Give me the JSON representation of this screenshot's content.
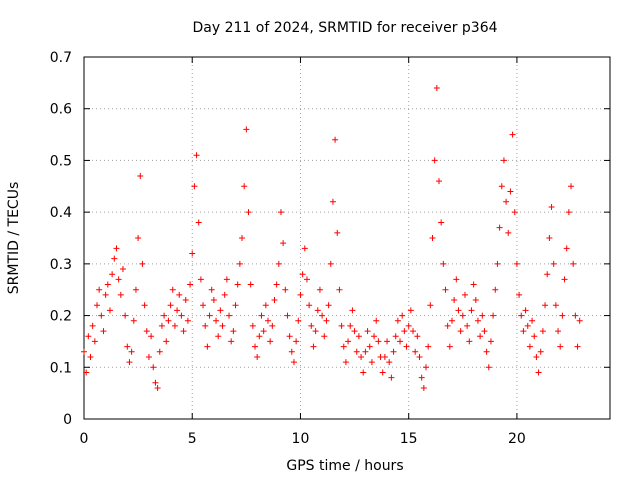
{
  "chart_data": {
    "type": "scatter",
    "title": "Day 211 of 2024, SRMTID for receiver p364",
    "xlabel": "GPS time / hours",
    "ylabel": "SRMTID / TECUs",
    "xlim": [
      0,
      24.3
    ],
    "ylim": [
      0,
      0.7
    ],
    "xticks": [
      0,
      5,
      10,
      15,
      20
    ],
    "xtick_labels": [
      "0",
      "5",
      "10",
      "15",
      "20"
    ],
    "yticks": [
      0,
      0.1,
      0.2,
      0.3,
      0.4,
      0.5,
      0.6,
      0.7
    ],
    "ytick_labels": [
      "0",
      "0.1",
      "0.2",
      "0.3",
      "0.4",
      "0.5",
      "0.6",
      "0.7"
    ],
    "grid": true,
    "marker": "plus",
    "color": "#ff0000",
    "series": [
      {
        "name": "SRMTID",
        "points": [
          [
            0.0,
            0.13
          ],
          [
            0.1,
            0.09
          ],
          [
            0.2,
            0.16
          ],
          [
            0.3,
            0.12
          ],
          [
            0.4,
            0.18
          ],
          [
            0.5,
            0.15
          ],
          [
            0.6,
            0.22
          ],
          [
            0.7,
            0.25
          ],
          [
            0.8,
            0.2
          ],
          [
            0.9,
            0.17
          ],
          [
            1.0,
            0.24
          ],
          [
            1.1,
            0.26
          ],
          [
            1.2,
            0.21
          ],
          [
            1.3,
            0.28
          ],
          [
            1.4,
            0.31
          ],
          [
            1.5,
            0.33
          ],
          [
            1.6,
            0.27
          ],
          [
            1.7,
            0.24
          ],
          [
            1.8,
            0.29
          ],
          [
            1.9,
            0.2
          ],
          [
            2.0,
            0.14
          ],
          [
            2.1,
            0.11
          ],
          [
            2.2,
            0.13
          ],
          [
            2.3,
            0.19
          ],
          [
            2.4,
            0.25
          ],
          [
            2.5,
            0.35
          ],
          [
            2.6,
            0.47
          ],
          [
            2.7,
            0.3
          ],
          [
            2.8,
            0.22
          ],
          [
            2.9,
            0.17
          ],
          [
            3.0,
            0.12
          ],
          [
            3.1,
            0.16
          ],
          [
            3.2,
            0.1
          ],
          [
            3.3,
            0.07
          ],
          [
            3.4,
            0.06
          ],
          [
            3.5,
            0.13
          ],
          [
            3.6,
            0.18
          ],
          [
            3.7,
            0.2
          ],
          [
            3.8,
            0.15
          ],
          [
            3.9,
            0.19
          ],
          [
            4.0,
            0.22
          ],
          [
            4.1,
            0.25
          ],
          [
            4.2,
            0.18
          ],
          [
            4.3,
            0.21
          ],
          [
            4.4,
            0.24
          ],
          [
            4.5,
            0.2
          ],
          [
            4.6,
            0.17
          ],
          [
            4.7,
            0.23
          ],
          [
            4.8,
            0.19
          ],
          [
            4.9,
            0.26
          ],
          [
            5.0,
            0.32
          ],
          [
            5.1,
            0.45
          ],
          [
            5.2,
            0.51
          ],
          [
            5.3,
            0.38
          ],
          [
            5.4,
            0.27
          ],
          [
            5.5,
            0.22
          ],
          [
            5.6,
            0.18
          ],
          [
            5.7,
            0.14
          ],
          [
            5.8,
            0.2
          ],
          [
            5.9,
            0.25
          ],
          [
            6.0,
            0.23
          ],
          [
            6.1,
            0.19
          ],
          [
            6.2,
            0.16
          ],
          [
            6.3,
            0.21
          ],
          [
            6.4,
            0.18
          ],
          [
            6.5,
            0.24
          ],
          [
            6.6,
            0.27
          ],
          [
            6.7,
            0.2
          ],
          [
            6.8,
            0.15
          ],
          [
            6.9,
            0.17
          ],
          [
            7.0,
            0.22
          ],
          [
            7.1,
            0.26
          ],
          [
            7.2,
            0.3
          ],
          [
            7.3,
            0.35
          ],
          [
            7.4,
            0.45
          ],
          [
            7.5,
            0.56
          ],
          [
            7.6,
            0.4
          ],
          [
            7.7,
            0.26
          ],
          [
            7.8,
            0.18
          ],
          [
            7.9,
            0.14
          ],
          [
            8.0,
            0.12
          ],
          [
            8.1,
            0.16
          ],
          [
            8.2,
            0.2
          ],
          [
            8.3,
            0.17
          ],
          [
            8.4,
            0.22
          ],
          [
            8.5,
            0.19
          ],
          [
            8.6,
            0.15
          ],
          [
            8.7,
            0.18
          ],
          [
            8.8,
            0.23
          ],
          [
            8.9,
            0.26
          ],
          [
            9.0,
            0.3
          ],
          [
            9.1,
            0.4
          ],
          [
            9.2,
            0.34
          ],
          [
            9.3,
            0.25
          ],
          [
            9.4,
            0.2
          ],
          [
            9.5,
            0.16
          ],
          [
            9.6,
            0.13
          ],
          [
            9.7,
            0.11
          ],
          [
            9.8,
            0.15
          ],
          [
            9.9,
            0.19
          ],
          [
            10.0,
            0.24
          ],
          [
            10.1,
            0.28
          ],
          [
            10.2,
            0.33
          ],
          [
            10.3,
            0.27
          ],
          [
            10.4,
            0.22
          ],
          [
            10.5,
            0.18
          ],
          [
            10.6,
            0.14
          ],
          [
            10.7,
            0.17
          ],
          [
            10.8,
            0.21
          ],
          [
            10.9,
            0.25
          ],
          [
            11.0,
            0.2
          ],
          [
            11.1,
            0.16
          ],
          [
            11.2,
            0.19
          ],
          [
            11.3,
            0.22
          ],
          [
            11.4,
            0.3
          ],
          [
            11.5,
            0.42
          ],
          [
            11.6,
            0.54
          ],
          [
            11.7,
            0.36
          ],
          [
            11.8,
            0.25
          ],
          [
            11.9,
            0.18
          ],
          [
            12.0,
            0.14
          ],
          [
            12.1,
            0.11
          ],
          [
            12.2,
            0.15
          ],
          [
            12.3,
            0.18
          ],
          [
            12.4,
            0.21
          ],
          [
            12.5,
            0.17
          ],
          [
            12.6,
            0.13
          ],
          [
            12.7,
            0.16
          ],
          [
            12.8,
            0.12
          ],
          [
            12.9,
            0.09
          ],
          [
            13.0,
            0.13
          ],
          [
            13.1,
            0.17
          ],
          [
            13.2,
            0.14
          ],
          [
            13.3,
            0.11
          ],
          [
            13.4,
            0.16
          ],
          [
            13.5,
            0.19
          ],
          [
            13.6,
            0.15
          ],
          [
            13.7,
            0.12
          ],
          [
            13.8,
            0.09
          ],
          [
            13.9,
            0.12
          ],
          [
            14.0,
            0.15
          ],
          [
            14.1,
            0.11
          ],
          [
            14.2,
            0.08
          ],
          [
            14.3,
            0.13
          ],
          [
            14.4,
            0.16
          ],
          [
            14.5,
            0.19
          ],
          [
            14.6,
            0.15
          ],
          [
            14.7,
            0.2
          ],
          [
            14.8,
            0.17
          ],
          [
            14.9,
            0.14
          ],
          [
            15.0,
            0.18
          ],
          [
            15.1,
            0.21
          ],
          [
            15.2,
            0.17
          ],
          [
            15.3,
            0.13
          ],
          [
            15.4,
            0.16
          ],
          [
            15.5,
            0.12
          ],
          [
            15.6,
            0.08
          ],
          [
            15.7,
            0.06
          ],
          [
            15.8,
            0.1
          ],
          [
            15.9,
            0.14
          ],
          [
            16.0,
            0.22
          ],
          [
            16.1,
            0.35
          ],
          [
            16.2,
            0.5
          ],
          [
            16.3,
            0.64
          ],
          [
            16.4,
            0.46
          ],
          [
            16.5,
            0.38
          ],
          [
            16.6,
            0.3
          ],
          [
            16.7,
            0.25
          ],
          [
            16.8,
            0.18
          ],
          [
            16.9,
            0.14
          ],
          [
            17.0,
            0.19
          ],
          [
            17.1,
            0.23
          ],
          [
            17.2,
            0.27
          ],
          [
            17.3,
            0.21
          ],
          [
            17.4,
            0.17
          ],
          [
            17.5,
            0.2
          ],
          [
            17.6,
            0.24
          ],
          [
            17.7,
            0.18
          ],
          [
            17.8,
            0.15
          ],
          [
            17.9,
            0.21
          ],
          [
            18.0,
            0.26
          ],
          [
            18.1,
            0.23
          ],
          [
            18.2,
            0.19
          ],
          [
            18.3,
            0.16
          ],
          [
            18.4,
            0.2
          ],
          [
            18.5,
            0.17
          ],
          [
            18.6,
            0.13
          ],
          [
            18.7,
            0.1
          ],
          [
            18.8,
            0.15
          ],
          [
            18.9,
            0.2
          ],
          [
            19.0,
            0.25
          ],
          [
            19.1,
            0.3
          ],
          [
            19.2,
            0.37
          ],
          [
            19.3,
            0.45
          ],
          [
            19.4,
            0.5
          ],
          [
            19.5,
            0.42
          ],
          [
            19.6,
            0.36
          ],
          [
            19.7,
            0.44
          ],
          [
            19.8,
            0.55
          ],
          [
            19.9,
            0.4
          ],
          [
            20.0,
            0.3
          ],
          [
            20.1,
            0.24
          ],
          [
            20.2,
            0.2
          ],
          [
            20.3,
            0.17
          ],
          [
            20.4,
            0.21
          ],
          [
            20.5,
            0.18
          ],
          [
            20.6,
            0.14
          ],
          [
            20.7,
            0.19
          ],
          [
            20.8,
            0.16
          ],
          [
            20.9,
            0.12
          ],
          [
            21.0,
            0.09
          ],
          [
            21.1,
            0.13
          ],
          [
            21.2,
            0.17
          ],
          [
            21.3,
            0.22
          ],
          [
            21.4,
            0.28
          ],
          [
            21.5,
            0.35
          ],
          [
            21.6,
            0.41
          ],
          [
            21.7,
            0.3
          ],
          [
            21.8,
            0.22
          ],
          [
            21.9,
            0.17
          ],
          [
            22.0,
            0.14
          ],
          [
            22.1,
            0.2
          ],
          [
            22.2,
            0.27
          ],
          [
            22.3,
            0.33
          ],
          [
            22.4,
            0.4
          ],
          [
            22.5,
            0.45
          ],
          [
            22.6,
            0.3
          ],
          [
            22.7,
            0.2
          ],
          [
            22.8,
            0.14
          ],
          [
            22.9,
            0.19
          ]
        ]
      }
    ]
  }
}
